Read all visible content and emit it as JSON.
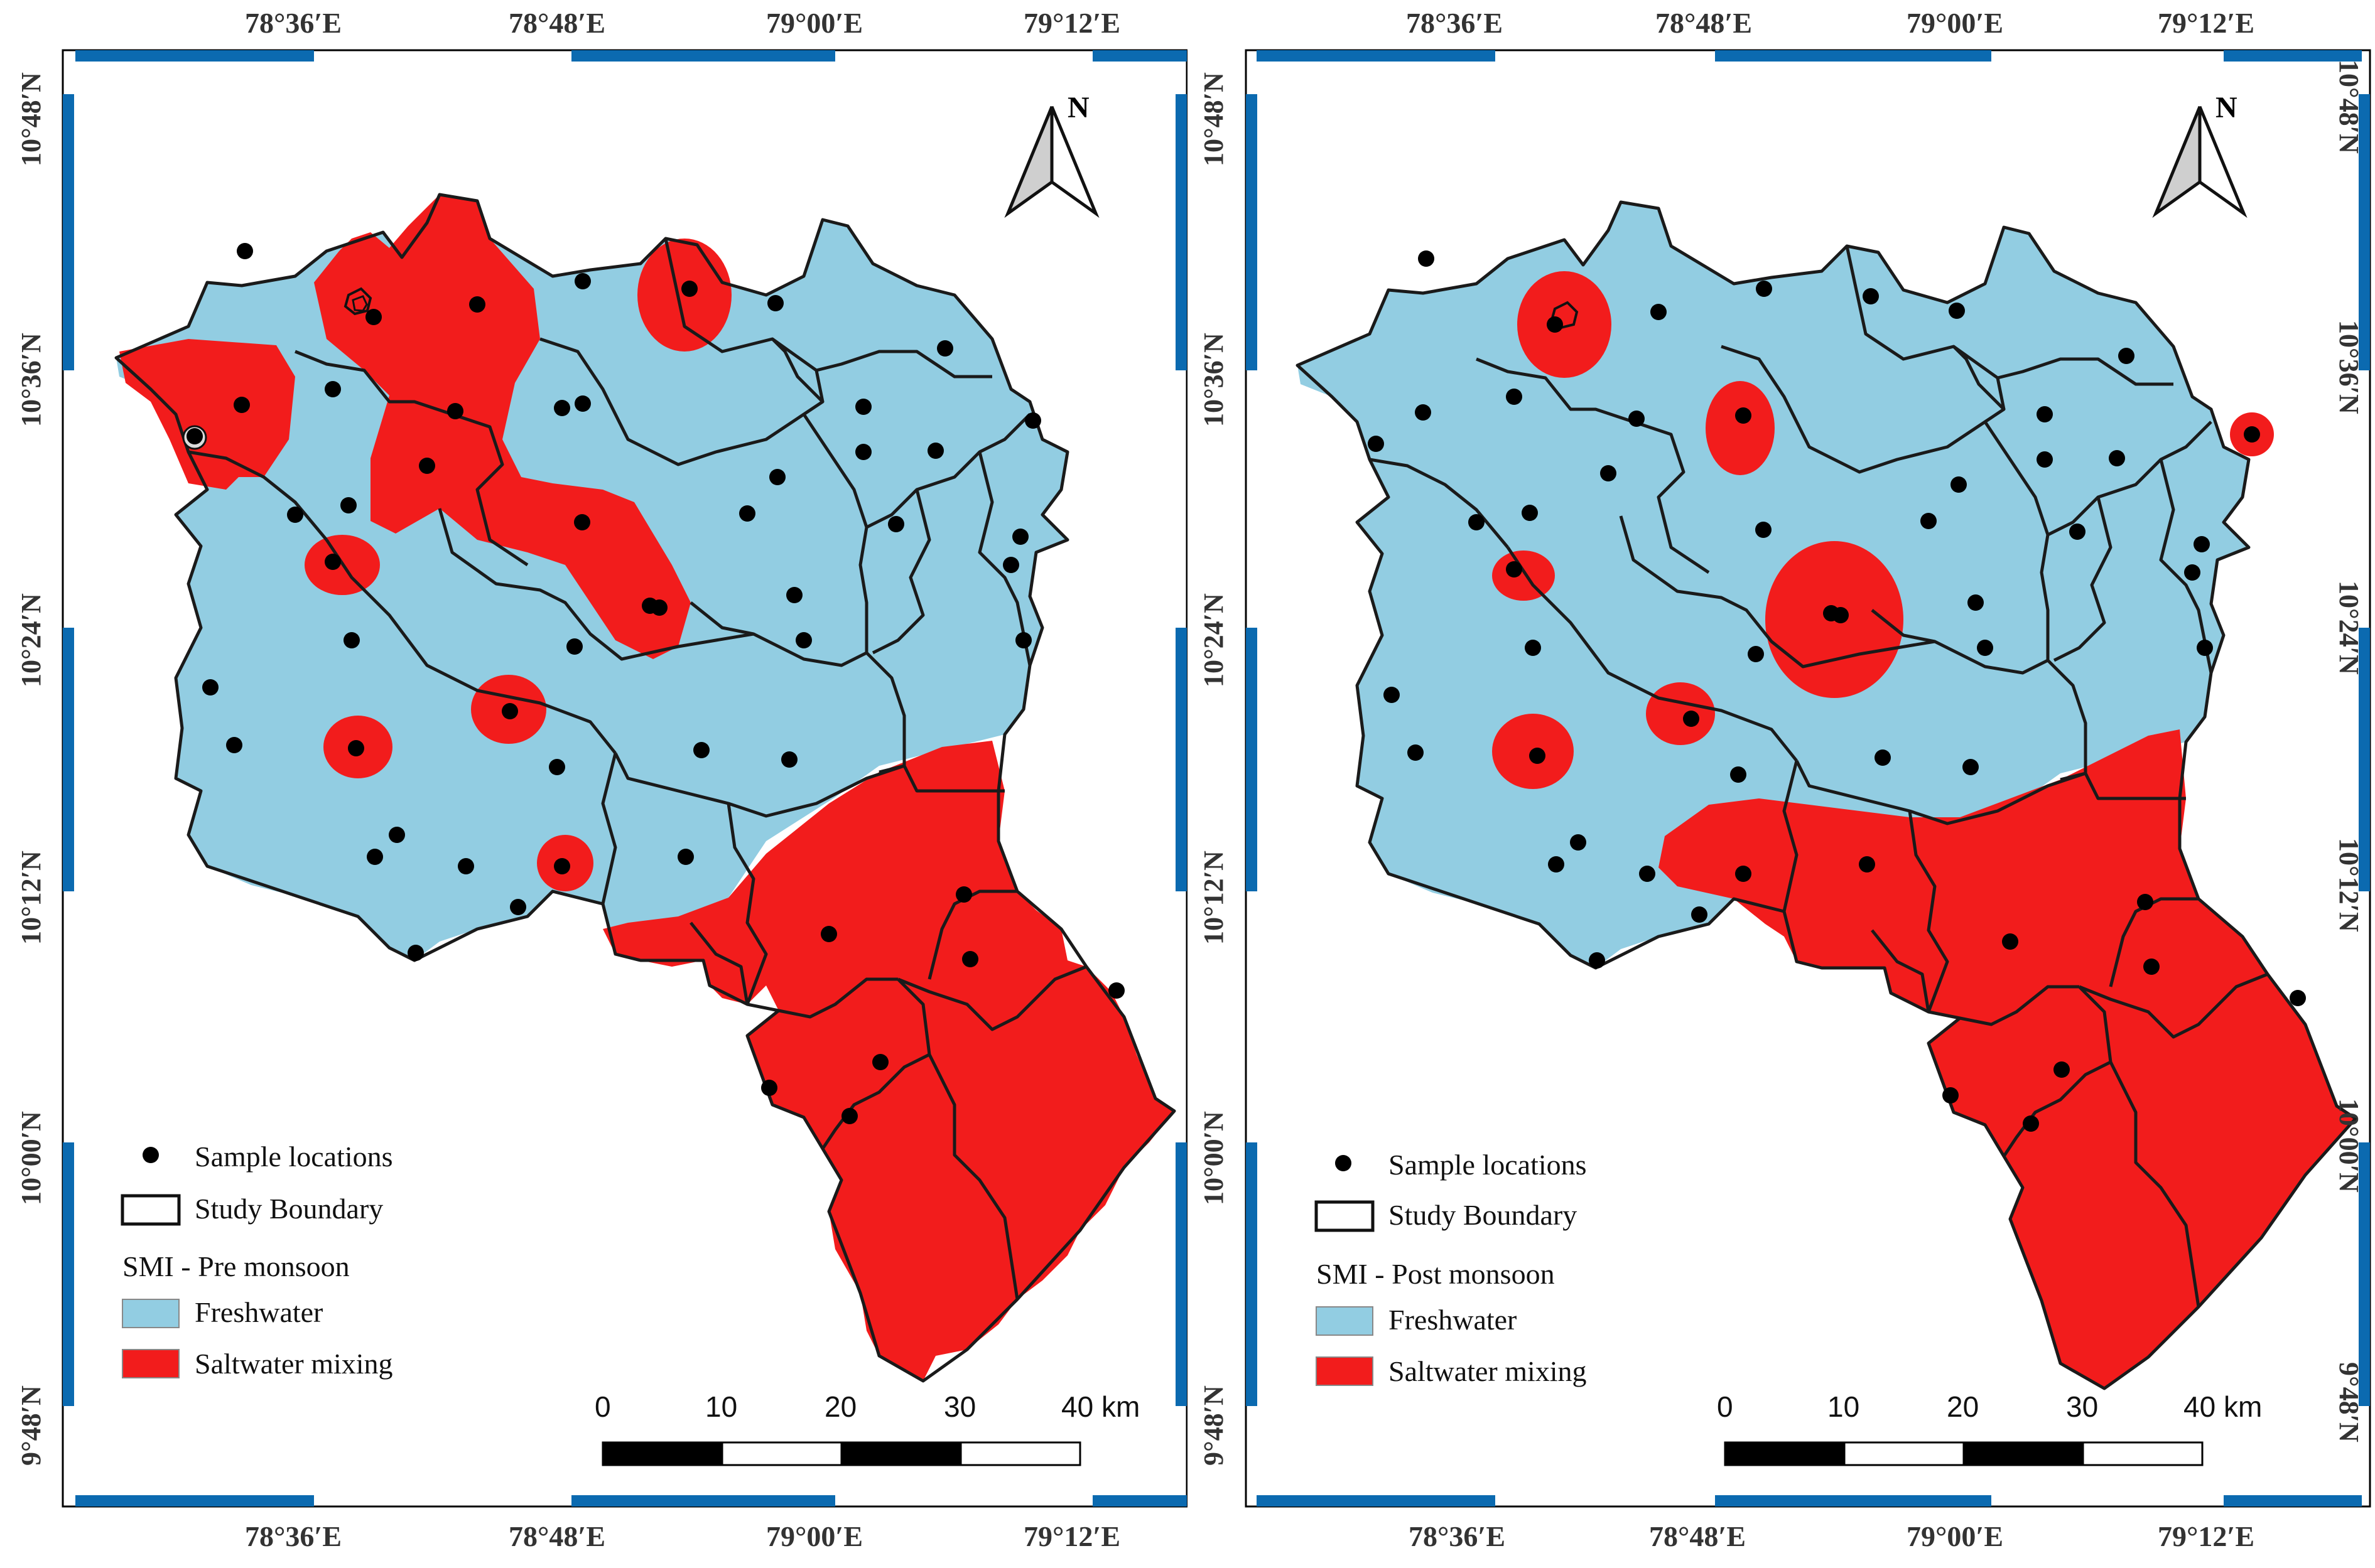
{
  "colors": {
    "freshwater": "#92cde2",
    "saltwater": "#f21c1c",
    "frame_blue": "#0b6ab0",
    "boundary": "#1a1a1a",
    "sample_point": "#000000"
  },
  "axes": {
    "longitude_labels": [
      "78°36′E",
      "78°48′E",
      "79°00′E",
      "79°12′E"
    ],
    "latitude_labels": [
      "10°48′N",
      "10°36′N",
      "10°24′N",
      "10°12′N",
      "10°00′N",
      "9°48′N"
    ]
  },
  "north_arrow": {
    "letter": "N",
    "icon": "north-arrow-icon"
  },
  "scale_bar": {
    "ticks": [
      "0",
      "10",
      "20",
      "30",
      "40 km"
    ]
  },
  "legend_common": {
    "sample_locations": "Sample locations",
    "study_boundary": "Study Boundary",
    "freshwater": "Freshwater",
    "saltwater_mixing": "Saltwater mixing"
  },
  "maps": [
    {
      "id": "pre",
      "title": "SMI - Pre monsoon"
    },
    {
      "id": "post",
      "title": "SMI - Post monsoon"
    }
  ]
}
